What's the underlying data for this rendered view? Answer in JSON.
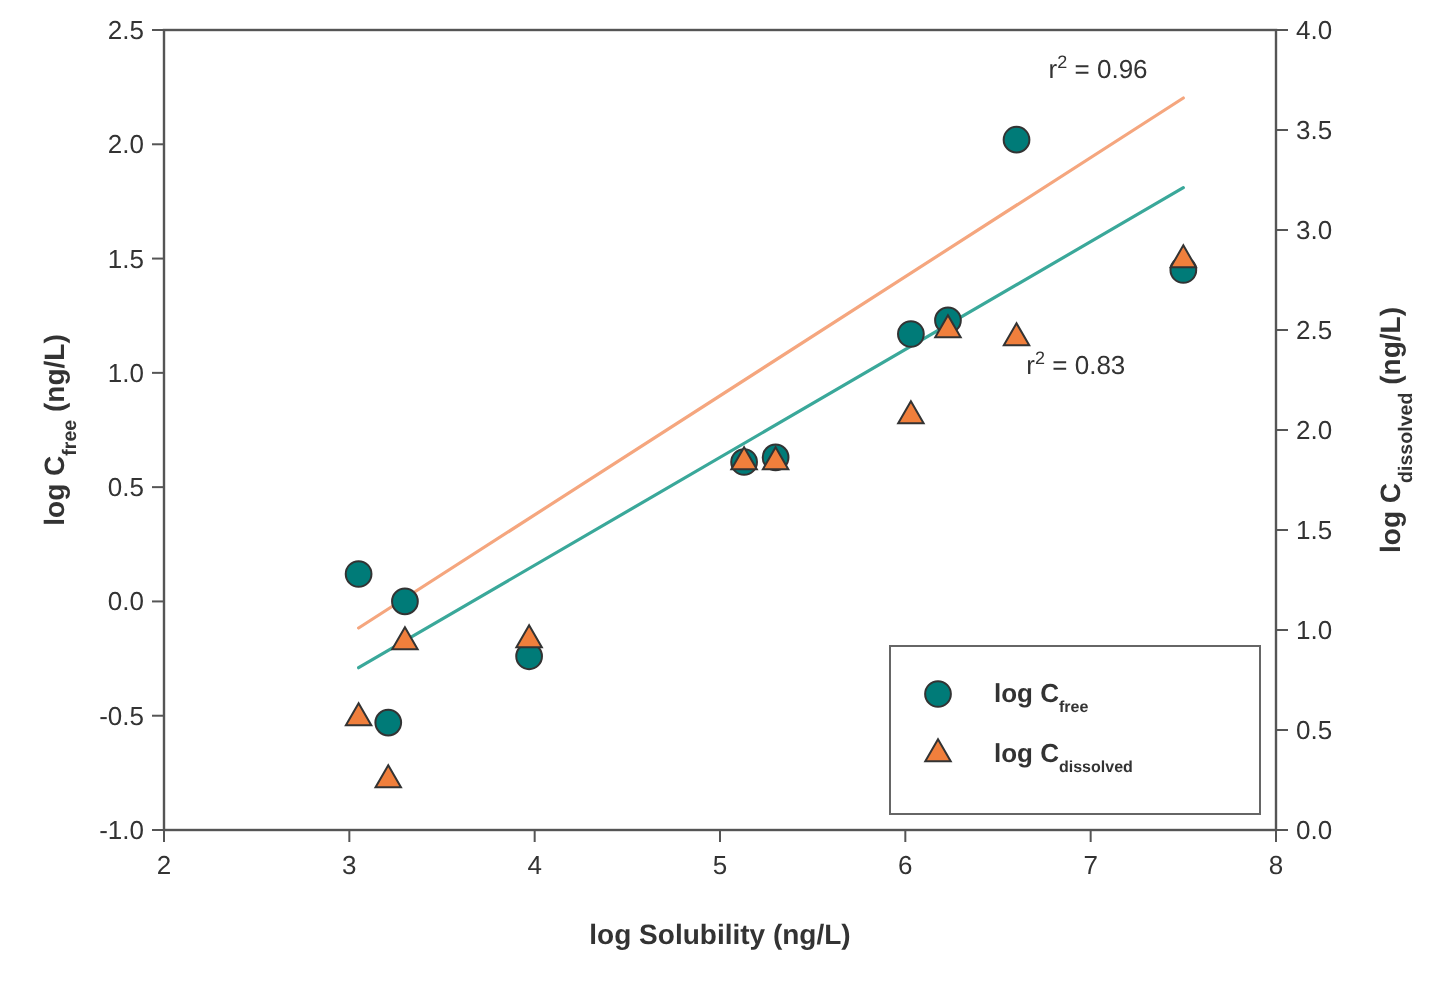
{
  "chart_data": {
    "type": "scatter",
    "xlabel": "log Solubility (ng/L)",
    "ylabel": "log C$_{free}$ (ng/L)",
    "y2label": "log C$_{dissolved}$ (ng/L)",
    "xlim": [
      2,
      8
    ],
    "xticks": [
      2,
      3,
      4,
      5,
      6,
      7,
      8
    ],
    "ylim": [
      -1,
      2.5
    ],
    "yticks": [
      {
        "value": -1,
        "label": "-1.0"
      },
      {
        "value": -0.5,
        "label": "-0.5"
      },
      {
        "value": 0,
        "label": "0.0"
      },
      {
        "value": 0.5,
        "label": "0.5"
      },
      {
        "value": 1,
        "label": "1.0"
      },
      {
        "value": 1.5,
        "label": "1.5"
      },
      {
        "value": 2,
        "label": "2.0"
      },
      {
        "value": 2.5,
        "label": "2.5"
      }
    ],
    "y2lim": [
      0,
      4
    ],
    "y2ticks": [
      {
        "value": 0,
        "label": "0.0"
      },
      {
        "value": 0.5,
        "label": "0.5"
      },
      {
        "value": 1,
        "label": "1.0"
      },
      {
        "value": 1.5,
        "label": "1.5"
      },
      {
        "value": 2,
        "label": "2.0"
      },
      {
        "value": 2.5,
        "label": "2.5"
      },
      {
        "value": 3,
        "label": "3.0"
      },
      {
        "value": 3.5,
        "label": "3.5"
      },
      {
        "value": 4,
        "label": "4.0"
      }
    ],
    "grid": false,
    "legend": "bottom right",
    "series": [
      {
        "type": "line",
        "color": "#f5a67e",
        "x": [
          3.05,
          7.5
        ],
        "values": [
          1.01,
          3.66
        ],
        "axis": "y2",
        "marker": "none"
      },
      {
        "type": "line",
        "color": "#3aa89a",
        "x": [
          3.05,
          7.5
        ],
        "values": [
          -0.29,
          1.81
        ],
        "marker": "none"
      },
      {
        "name": "log C$_{free}$",
        "color": "#007b78",
        "marker": "circle",
        "x": [
          3.05,
          3.21,
          3.3,
          3.97,
          5.13,
          5.3,
          6.03,
          6.23,
          6.6,
          7.5
        ],
        "values": [
          0.12,
          -0.53,
          0.0,
          -0.24,
          0.61,
          0.63,
          1.17,
          1.23,
          2.02,
          1.45
        ]
      },
      {
        "name": "log C$_{dissolved}$",
        "color": "#f07f3c",
        "marker": "triangle",
        "axis": "y2",
        "x": [
          3.05,
          3.21,
          3.3,
          3.97,
          5.13,
          5.3,
          6.03,
          6.23,
          6.6,
          7.5
        ],
        "values": [
          0.56,
          0.25,
          0.94,
          0.95,
          1.84,
          1.84,
          2.07,
          2.5,
          2.46,
          2.85
        ]
      }
    ],
    "annotations": [
      "r$^{2}$ = 0.96",
      "r$^{2}$ = 0.83"
    ]
  }
}
